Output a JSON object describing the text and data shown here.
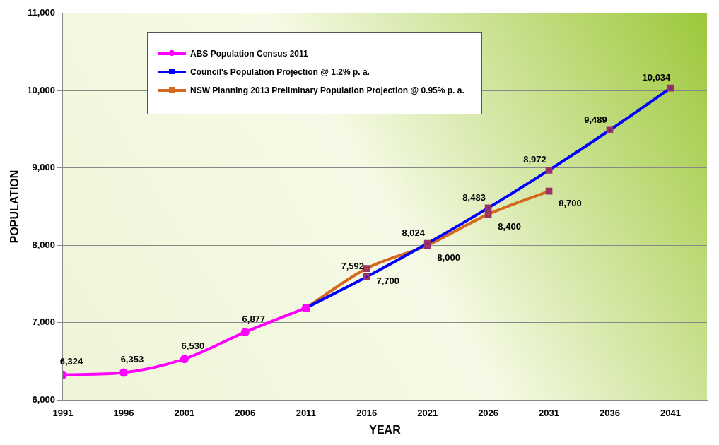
{
  "chart_data": {
    "type": "line",
    "xlabel": "YEAR",
    "ylabel": "POPULATION",
    "xlim": [
      1991,
      2044
    ],
    "xticks": [
      1991,
      1996,
      2001,
      2006,
      2011,
      2016,
      2021,
      2026,
      2031,
      2036,
      2041
    ],
    "ylim": [
      6000,
      11000
    ],
    "yticks": [
      {
        "value": 6000,
        "label": "6,000"
      },
      {
        "value": 7000,
        "label": "7,000"
      },
      {
        "value": 8000,
        "label": "8,000"
      },
      {
        "value": 9000,
        "label": "9,000"
      },
      {
        "value": 10000,
        "label": "10,000"
      },
      {
        "value": 11000,
        "label": "11,000"
      }
    ],
    "grid": "y",
    "legend": "top left",
    "series": [
      {
        "name": "ABS Population Census 2011",
        "color": "#ff00ff",
        "marker": "circle",
        "x": [
          1991,
          1996,
          2001,
          2006,
          2011
        ],
        "values": [
          6324,
          6353,
          6530,
          6877,
          7190
        ],
        "value_labels": [
          "6,324",
          "6,353",
          "6,530",
          "6,877",
          null
        ]
      },
      {
        "name": "Council's Population Projection @ 1.2% p. a.",
        "color": "#0000ff",
        "marker": "square",
        "x": [
          2011,
          2016,
          2021,
          2026,
          2031,
          2036,
          2041
        ],
        "values": [
          7190,
          7592,
          8024,
          8483,
          8972,
          9489,
          10034
        ],
        "value_labels": [
          null,
          "7,592",
          "8,024",
          "8,483",
          "8,972",
          "9,489",
          "10,034"
        ]
      },
      {
        "name": "NSW Planning 2013 Preliminary Population Projection @ 0.95% p. a.",
        "color": "#d2691e",
        "marker": "square",
        "x": [
          2011,
          2016,
          2021,
          2026,
          2031
        ],
        "values": [
          7190,
          7700,
          8000,
          8400,
          8700
        ],
        "value_labels": [
          null,
          "7,700",
          "8,000",
          "8,400",
          "8,700"
        ]
      }
    ]
  }
}
